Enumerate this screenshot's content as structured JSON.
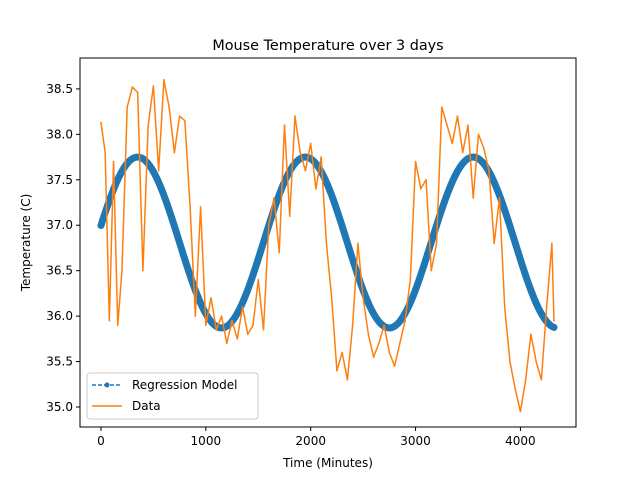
{
  "chart_data": {
    "type": "line",
    "title": "Mouse Temperature over 3 days",
    "xlabel": "Time (Minutes)",
    "ylabel": "Temperature (C)",
    "xlim": [
      -200,
      4530
    ],
    "ylim": [
      34.78,
      38.84
    ],
    "xticks": [
      0,
      1000,
      2000,
      3000,
      4000
    ],
    "yticks": [
      35.0,
      35.5,
      36.0,
      36.5,
      37.0,
      37.5,
      38.0,
      38.5
    ],
    "xtick_labels": [
      "0",
      "1000",
      "2000",
      "3000",
      "4000"
    ],
    "ytick_labels": [
      "35.0",
      "35.5",
      "36.0",
      "36.5",
      "37.0",
      "37.5",
      "38.0",
      "38.5"
    ],
    "grid": false,
    "legend": {
      "position": "lower-left",
      "entries": [
        "Regression Model",
        "Data"
      ]
    },
    "series": [
      {
        "name": "Regression Model",
        "color": "#1f77b4",
        "style": "dashed-dot-markers",
        "model": {
          "kind": "sinusoid",
          "mean": 36.81,
          "amplitude": 0.94,
          "period_minutes": 1600,
          "phase_minutes_at_zero": 0.2
        },
        "x_range": [
          0,
          4320
        ]
      },
      {
        "name": "Data",
        "color": "#ff7f0e",
        "style": "solid",
        "x": [
          0,
          40,
          80,
          120,
          160,
          200,
          250,
          300,
          350,
          400,
          450,
          500,
          550,
          600,
          650,
          700,
          750,
          800,
          850,
          900,
          950,
          1000,
          1050,
          1100,
          1150,
          1200,
          1250,
          1300,
          1350,
          1400,
          1450,
          1500,
          1550,
          1600,
          1650,
          1700,
          1750,
          1800,
          1850,
          1900,
          1950,
          2000,
          2050,
          2100,
          2150,
          2200,
          2250,
          2300,
          2350,
          2400,
          2450,
          2500,
          2550,
          2600,
          2650,
          2700,
          2750,
          2800,
          2850,
          2900,
          2950,
          3000,
          3050,
          3100,
          3150,
          3200,
          3250,
          3300,
          3350,
          3400,
          3450,
          3500,
          3550,
          3600,
          3650,
          3700,
          3750,
          3800,
          3850,
          3900,
          3950,
          4000,
          4050,
          4100,
          4150,
          4200,
          4250,
          4300,
          4320
        ],
        "y": [
          38.13,
          37.8,
          35.95,
          37.7,
          35.9,
          36.5,
          38.3,
          38.52,
          38.46,
          36.5,
          38.1,
          38.53,
          37.6,
          38.6,
          38.3,
          37.8,
          38.2,
          38.15,
          37.2,
          36.0,
          37.2,
          35.9,
          36.2,
          35.85,
          36.0,
          35.7,
          35.95,
          35.75,
          36.1,
          35.8,
          35.9,
          36.4,
          35.85,
          37.0,
          37.3,
          36.7,
          38.1,
          37.1,
          38.2,
          37.8,
          37.6,
          37.9,
          37.4,
          37.75,
          36.8,
          36.2,
          35.4,
          35.6,
          35.3,
          35.9,
          36.8,
          36.2,
          35.8,
          35.55,
          35.7,
          35.9,
          35.6,
          35.45,
          35.7,
          35.95,
          36.4,
          37.7,
          37.4,
          37.5,
          36.5,
          36.8,
          38.3,
          38.1,
          37.9,
          38.2,
          37.8,
          38.1,
          37.3,
          38.0,
          37.85,
          37.6,
          36.8,
          37.3,
          36.1,
          35.5,
          35.2,
          34.95,
          35.3,
          35.8,
          35.5,
          35.3,
          36.1,
          36.8,
          35.95
        ]
      }
    ]
  }
}
